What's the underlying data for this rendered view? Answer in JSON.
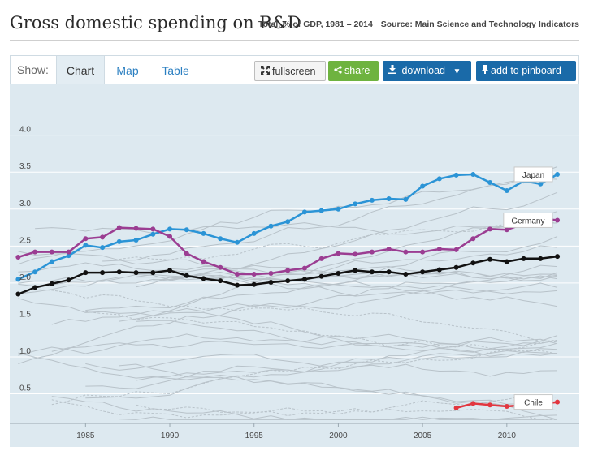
{
  "header": {
    "title": "Gross domestic spending on R&D",
    "subtitle": "Total, % of GDP, 1981 – 2014",
    "source": "Source: Main Science and Technology Indicators"
  },
  "toolbar": {
    "show_label": "Show:",
    "tabs": [
      {
        "label": "Chart",
        "active": true
      },
      {
        "label": "Map",
        "active": false
      },
      {
        "label": "Table",
        "active": false
      }
    ],
    "fullscreen_label": "fullscreen",
    "share_label": "share",
    "download_label": "download",
    "pinboard_label": "add to pinboard"
  },
  "colors": {
    "japan": "#2b94d6",
    "germany": "#9b3d92",
    "oecd_total": "#111111",
    "chile": "#e2363f",
    "background_series": "#b8c2c9",
    "plot_background": "#dde9f0"
  },
  "chart_data": {
    "type": "line",
    "x_range": [
      1980.5,
      2014.3
    ],
    "y_range": [
      0.1,
      4.6
    ],
    "x_ticks": [
      1985,
      1990,
      1995,
      2000,
      2005,
      2010
    ],
    "y_ticks": [
      0.5,
      1.0,
      1.5,
      2.0,
      2.5,
      3.0,
      3.5,
      4.0
    ],
    "y_tick_labels": [
      "0.5",
      "1.0",
      "1.5",
      "2.0",
      "2.5",
      "3.0",
      "3.5",
      "4.0"
    ],
    "grid": "horizontal",
    "series": [
      {
        "name": "Japan",
        "color": "#2b94d6",
        "label_at_year": 2013,
        "x": [
          1981,
          1982,
          1983,
          1984,
          1985,
          1986,
          1987,
          1988,
          1989,
          1990,
          1991,
          1992,
          1993,
          1994,
          1995,
          1996,
          1997,
          1998,
          1999,
          2000,
          2001,
          2002,
          2003,
          2004,
          2005,
          2006,
          2007,
          2008,
          2009,
          2010,
          2011,
          2012,
          2013
        ],
        "y": [
          2.05,
          2.15,
          2.29,
          2.37,
          2.51,
          2.48,
          2.56,
          2.58,
          2.66,
          2.73,
          2.72,
          2.67,
          2.6,
          2.55,
          2.67,
          2.77,
          2.83,
          2.96,
          2.98,
          3.0,
          3.07,
          3.12,
          3.14,
          3.13,
          3.31,
          3.41,
          3.46,
          3.47,
          3.36,
          3.25,
          3.38,
          3.34,
          3.47
        ]
      },
      {
        "name": "Germany",
        "color": "#9b3d92",
        "label_at_year": 2013,
        "x": [
          1981,
          1982,
          1983,
          1984,
          1985,
          1986,
          1987,
          1988,
          1989,
          1990,
          1991,
          1992,
          1993,
          1994,
          1995,
          1996,
          1997,
          1998,
          1999,
          2000,
          2001,
          2002,
          2003,
          2004,
          2005,
          2006,
          2007,
          2008,
          2009,
          2010,
          2011,
          2012,
          2013
        ],
        "y": [
          2.35,
          2.42,
          2.42,
          2.42,
          2.6,
          2.62,
          2.75,
          2.74,
          2.73,
          2.63,
          2.4,
          2.29,
          2.21,
          2.12,
          2.12,
          2.13,
          2.17,
          2.2,
          2.33,
          2.4,
          2.39,
          2.42,
          2.46,
          2.42,
          2.42,
          2.46,
          2.45,
          2.6,
          2.73,
          2.72,
          2.8,
          2.87,
          2.85
        ]
      },
      {
        "name": "",
        "color": "#111111",
        "x": [
          1981,
          1982,
          1983,
          1984,
          1985,
          1986,
          1987,
          1988,
          1989,
          1990,
          1991,
          1992,
          1993,
          1994,
          1995,
          1996,
          1997,
          1998,
          1999,
          2000,
          2001,
          2002,
          2003,
          2004,
          2005,
          2006,
          2007,
          2008,
          2009,
          2010,
          2011,
          2012,
          2013
        ],
        "y": [
          1.85,
          1.94,
          1.99,
          2.04,
          2.14,
          2.14,
          2.15,
          2.14,
          2.14,
          2.17,
          2.1,
          2.06,
          2.03,
          1.97,
          1.98,
          2.01,
          2.03,
          2.05,
          2.09,
          2.13,
          2.17,
          2.15,
          2.15,
          2.12,
          2.15,
          2.18,
          2.21,
          2.27,
          2.32,
          2.29,
          2.33,
          2.33,
          2.36
        ]
      },
      {
        "name": "Chile",
        "color": "#e2363f",
        "label_at_year": 2013,
        "x": [
          2007,
          2008,
          2009,
          2010,
          2011,
          2012,
          2013
        ],
        "y": [
          0.31,
          0.37,
          0.35,
          0.33,
          0.35,
          0.36,
          0.39
        ]
      }
    ]
  }
}
